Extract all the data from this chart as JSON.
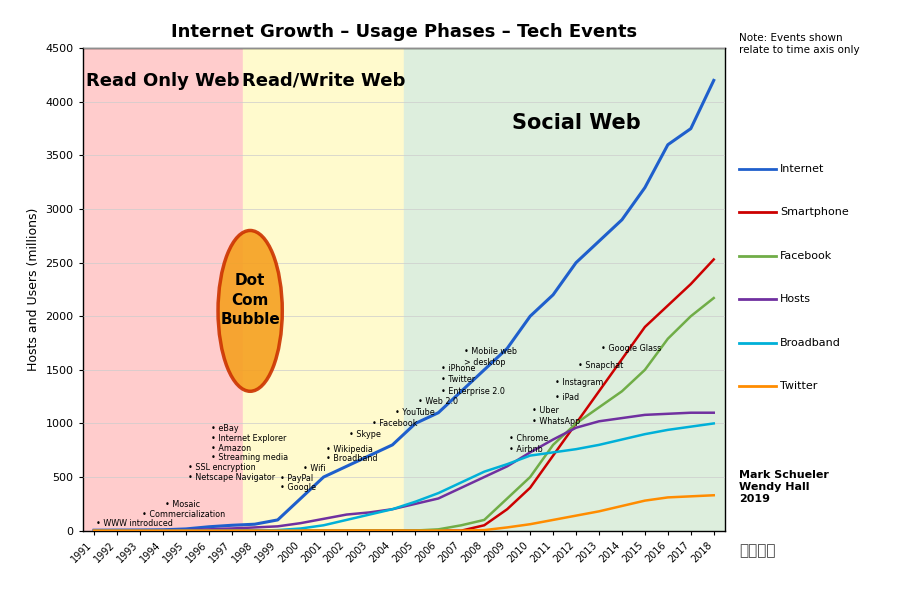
{
  "title": "Internet Growth – Usage Phases – Tech Events",
  "ylabel": "Hosts and Users (millions)",
  "years": [
    1991,
    1992,
    1993,
    1994,
    1995,
    1996,
    1997,
    1998,
    1999,
    2000,
    2001,
    2002,
    2003,
    2004,
    2005,
    2006,
    2007,
    2008,
    2009,
    2010,
    2011,
    2012,
    2013,
    2014,
    2015,
    2016,
    2017,
    2018
  ],
  "internet": [
    4,
    5,
    6,
    8,
    16,
    36,
    50,
    60,
    100,
    300,
    500,
    600,
    700,
    800,
    1000,
    1100,
    1300,
    1500,
    1700,
    2000,
    2200,
    2500,
    2700,
    2900,
    3200,
    3600,
    3750,
    4200
  ],
  "smartphone": [
    0,
    0,
    0,
    0,
    0,
    0,
    0,
    0,
    0,
    0,
    0,
    0,
    0,
    0,
    0,
    0,
    0,
    50,
    200,
    400,
    700,
    1000,
    1300,
    1600,
    1900,
    2100,
    2300,
    2530
  ],
  "facebook": [
    0,
    0,
    0,
    0,
    0,
    0,
    0,
    0,
    0,
    0,
    0,
    0,
    0,
    0,
    1,
    12,
    50,
    100,
    300,
    500,
    800,
    1000,
    1150,
    1300,
    1500,
    1790,
    2000,
    2170
  ],
  "hosts": [
    1,
    2,
    3,
    4,
    5,
    12,
    20,
    30,
    40,
    70,
    110,
    150,
    170,
    200,
    250,
    300,
    400,
    500,
    600,
    730,
    850,
    960,
    1020,
    1050,
    1080,
    1090,
    1100,
    1100
  ],
  "broadband": [
    0,
    0,
    0,
    0,
    0,
    0,
    0,
    0,
    5,
    20,
    50,
    100,
    150,
    200,
    270,
    350,
    450,
    550,
    620,
    700,
    730,
    760,
    800,
    850,
    900,
    940,
    970,
    1000
  ],
  "twitter": [
    0,
    0,
    0,
    0,
    0,
    0,
    0,
    0,
    0,
    0,
    0,
    0,
    0,
    0,
    0,
    0,
    0,
    5,
    30,
    60,
    100,
    140,
    180,
    230,
    280,
    310,
    320,
    330
  ],
  "colors": {
    "internet": "#1F5FCC",
    "smartphone": "#CC0000",
    "facebook": "#70AD47",
    "hosts": "#7030A0",
    "broadband": "#00B0D8",
    "twitter": "#FF8C00"
  },
  "phase1_start": 1991,
  "phase1_end": 1997.5,
  "phase2_start": 1997.5,
  "phase2_end": 2004.5,
  "phase3_start": 2004.5,
  "phase3_end": 2018.5,
  "phase1_color": "#FFCCCC",
  "phase2_color": "#FFFACD",
  "phase3_color": "#DDEEDD",
  "phase1_label": "Read Only Web",
  "phase2_label": "Read/Write Web",
  "phase3_label": "Social Web",
  "note": "Note: Events shown\nrelate to time axis only",
  "credit": "Mark Schueler\nWendy Hall\n2019",
  "events": [
    {
      "year": 1991.1,
      "label": "WWW introduced",
      "y": 70
    },
    {
      "year": 1993.1,
      "label": "Commercialization",
      "y": 150
    },
    {
      "year": 1994.1,
      "label": "Mosaic",
      "y": 240
    },
    {
      "year": 1995.1,
      "label": "Netscape Navigator",
      "y": 500
    },
    {
      "year": 1995.1,
      "label": "SSL encryption",
      "y": 590
    },
    {
      "year": 1996.1,
      "label": "Streaming media",
      "y": 680
    },
    {
      "year": 1996.1,
      "label": "Amazon",
      "y": 770
    },
    {
      "year": 1996.1,
      "label": "Internet Explorer",
      "y": 860
    },
    {
      "year": 1996.1,
      "label": "eBay",
      "y": 950
    },
    {
      "year": 1999.1,
      "label": "Google",
      "y": 400
    },
    {
      "year": 1999.1,
      "label": "PayPal",
      "y": 490
    },
    {
      "year": 2000.1,
      "label": "Wifi",
      "y": 580
    },
    {
      "year": 2001.1,
      "label": "Broadband",
      "y": 670
    },
    {
      "year": 2001.1,
      "label": "Wikipedia",
      "y": 760
    },
    {
      "year": 2002.1,
      "label": "Skype",
      "y": 900
    },
    {
      "year": 2003.1,
      "label": "Facebook",
      "y": 1000
    },
    {
      "year": 2004.1,
      "label": "YouTube",
      "y": 1100
    },
    {
      "year": 2005.1,
      "label": "Web 2.0",
      "y": 1200
    },
    {
      "year": 2006.1,
      "label": "Enterprise 2.0",
      "y": 1300
    },
    {
      "year": 2006.1,
      "label": "Twitter",
      "y": 1410
    },
    {
      "year": 2006.1,
      "label": "iPhone",
      "y": 1510
    },
    {
      "year": 2007.1,
      "label": "Mobile web\n> desktop",
      "y": 1620
    },
    {
      "year": 2009.1,
      "label": "Airbnb",
      "y": 760
    },
    {
      "year": 2009.1,
      "label": "Chrome",
      "y": 860
    },
    {
      "year": 2010.1,
      "label": "WhatsApp",
      "y": 1020
    },
    {
      "year": 2010.1,
      "label": "Uber",
      "y": 1120
    },
    {
      "year": 2011.1,
      "label": "iPad",
      "y": 1240
    },
    {
      "year": 2011.1,
      "label": "Instagram",
      "y": 1380
    },
    {
      "year": 2012.1,
      "label": "Snapchat",
      "y": 1540
    },
    {
      "year": 2013.1,
      "label": "Google Glass",
      "y": 1700
    }
  ],
  "legend_entries": [
    "Internet",
    "Smartphone",
    "Facebook",
    "Hosts",
    "Broadband",
    "Twitter"
  ],
  "legend_colors": [
    "#1F5FCC",
    "#CC0000",
    "#70AD47",
    "#7030A0",
    "#00B0D8",
    "#FF8C00"
  ],
  "xlim": [
    1990.5,
    2018.5
  ],
  "ylim": [
    0,
    4500
  ],
  "yticks": [
    0,
    500,
    1000,
    1500,
    2000,
    2500,
    3000,
    3500,
    4000,
    4500
  ]
}
